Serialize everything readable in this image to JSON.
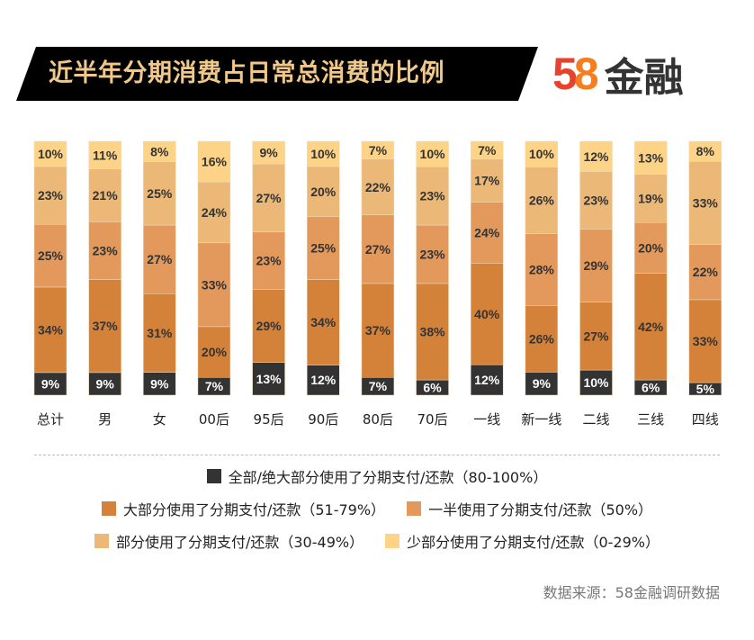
{
  "header": {
    "title": "近半年分期消费占日常总消费的比例",
    "logo_text": "58金融",
    "logo_number_5": "5",
    "logo_number_8": "8",
    "logo_word": "金融"
  },
  "chart_data": {
    "type": "bar",
    "stacked": true,
    "title": "近半年分期消费占日常总消费的比例",
    "categories": [
      "总计",
      "男",
      "女",
      "00后",
      "95后",
      "90后",
      "80后",
      "70后",
      "一线",
      "新一线",
      "二线",
      "三线",
      "四线"
    ],
    "series": [
      {
        "name": "全部/绝大部分使用了分期支付/还款（80-100%）",
        "color": "#333333",
        "label_color": "#ffffff",
        "values": [
          9,
          9,
          9,
          7,
          13,
          12,
          7,
          6,
          12,
          9,
          10,
          6,
          5
        ]
      },
      {
        "name": "大部分使用了分期支付/还款（51-79%）",
        "color": "#d4823a",
        "label_color": "#333333",
        "values": [
          34,
          37,
          31,
          20,
          29,
          34,
          37,
          38,
          40,
          26,
          27,
          42,
          33
        ]
      },
      {
        "name": "一半使用了分期支付/还款（50%）",
        "color": "#e4995c",
        "label_color": "#333333",
        "values": [
          25,
          23,
          27,
          33,
          23,
          25,
          27,
          23,
          24,
          28,
          29,
          20,
          22
        ]
      },
      {
        "name": "部分使用了分期支付/还款（30-49%）",
        "color": "#ebb877",
        "label_color": "#333333",
        "values": [
          23,
          21,
          25,
          24,
          27,
          20,
          22,
          23,
          17,
          26,
          23,
          19,
          33
        ]
      },
      {
        "name": "少部分使用了分期支付/还款（0-29%）",
        "color": "#fdd387",
        "label_color": "#333333",
        "values": [
          10,
          11,
          8,
          16,
          9,
          10,
          7,
          10,
          7,
          10,
          12,
          13,
          8
        ]
      }
    ],
    "value_suffix": "%",
    "legend_position": "bottom",
    "grid": false
  },
  "source": "数据来源：58金融调研数据",
  "colors": {
    "title_bg": "#000000",
    "title_text": "#f0c98a"
  }
}
